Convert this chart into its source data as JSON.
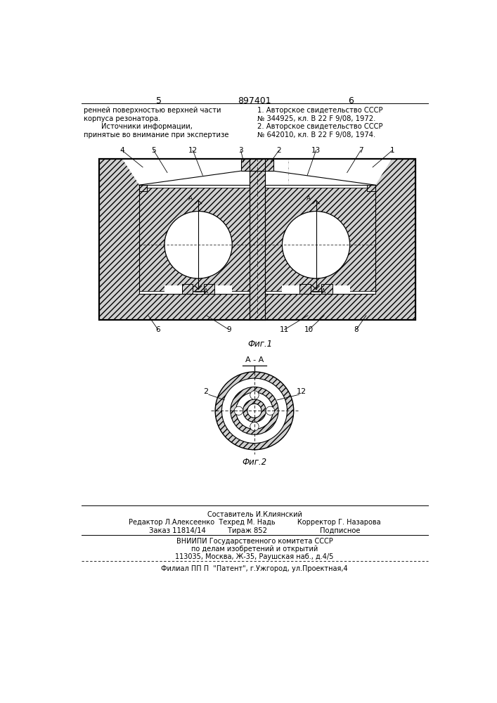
{
  "page_width": 7.07,
  "page_height": 10.0,
  "bg_color": "#ffffff",
  "header_number": "897401",
  "page_left": "5",
  "page_right": "6",
  "text_left_col": [
    "ренней поверхностью верхней части",
    "корпуса резонатора.",
    "        Источники информации,",
    "принятые во внимание при экспертизе"
  ],
  "text_right_col": [
    "1. Авторское свидетельство СССР",
    "№ 344925, кл. В 22 F 9/08, 1972.",
    "2. Авторское свидетельство СССР",
    "№ 642010, кл. В 22 F 9/08, 1974."
  ],
  "fig1_caption": "Фиг.1",
  "fig2_caption": "Фиг.2",
  "section_label": "А - А",
  "footer_lines": [
    "Составитель И.Клиянский",
    "Редактор Л.Алексеенко  Техред М. Надь          Корректор Г. Назарова",
    "Заказ 11814/14          Тираж 852                        Подписное",
    "ВНИИПИ Государственного комитета СССР",
    "по делам изобретений и открытий",
    "113035, Москва, Ж-35, Раушская наб., д.4/5",
    "Филиал ПП П  \"Патент\", г.Ужгород, ул.Проектная,4"
  ],
  "line_color": "#000000",
  "body_color": "#d0d0d0"
}
